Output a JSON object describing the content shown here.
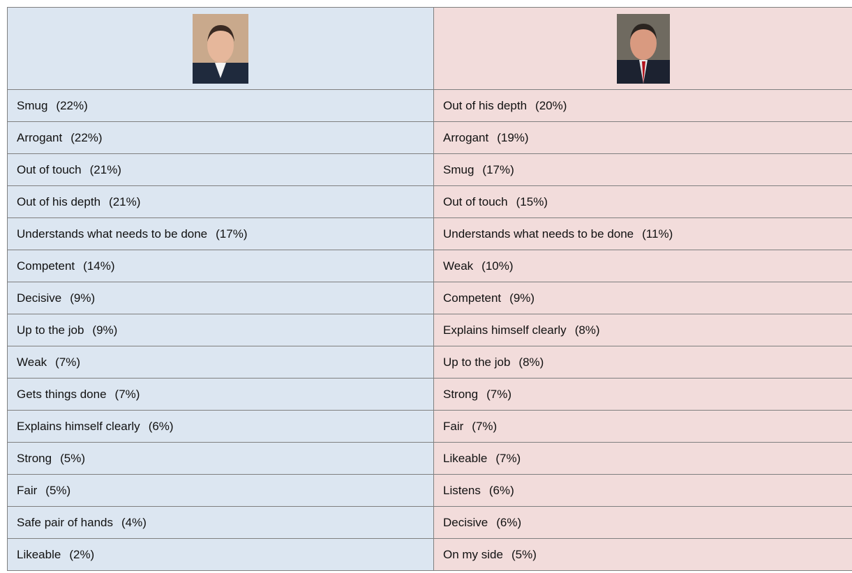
{
  "table": {
    "left": [
      {
        "trait": "Smug",
        "share": "(22%)"
      },
      {
        "trait": "Arrogant",
        "share": "(22%)"
      },
      {
        "trait": "Out of touch",
        "share": "(21%)"
      },
      {
        "trait": "Out of his depth",
        "share": "(21%)"
      },
      {
        "trait": "Understands what needs to be done",
        "share": "(17%)"
      },
      {
        "trait": "Competent",
        "share": "(14%)"
      },
      {
        "trait": "Decisive",
        "share": "(9%)"
      },
      {
        "trait": "Up to the job",
        "share": "(9%)"
      },
      {
        "trait": "Weak",
        "share": "(7%)"
      },
      {
        "trait": "Gets things done",
        "share": "(7%)"
      },
      {
        "trait": "Explains himself clearly",
        "share": "(6%)"
      },
      {
        "trait": "Strong",
        "share": "(5%)"
      },
      {
        "trait": "Fair",
        "share": "(5%)"
      },
      {
        "trait": "Safe pair of hands",
        "share": "(4%)"
      },
      {
        "trait": "Likeable",
        "share": "(2%)"
      }
    ],
    "right": [
      {
        "trait": "Out of his depth",
        "share": "(20%)"
      },
      {
        "trait": "Arrogant",
        "share": "(19%)"
      },
      {
        "trait": "Smug",
        "share": "(17%)"
      },
      {
        "trait": "Out of touch",
        "share": "(15%)"
      },
      {
        "trait": "Understands what needs to be done",
        "share": "(11%)"
      },
      {
        "trait": "Weak",
        "share": "(10%)"
      },
      {
        "trait": "Competent",
        "share": "(9%)"
      },
      {
        "trait": "Explains himself clearly",
        "share": "(8%)"
      },
      {
        "trait": "Up to the job",
        "share": "(8%)"
      },
      {
        "trait": "Strong",
        "share": "(7%)"
      },
      {
        "trait": "Fair",
        "share": "(7%)"
      },
      {
        "trait": "Likeable",
        "share": "(7%)"
      },
      {
        "trait": "Listens",
        "share": "(6%)"
      },
      {
        "trait": "Decisive",
        "share": "(6%)"
      },
      {
        "trait": "On my side",
        "share": "(5%)"
      }
    ]
  }
}
